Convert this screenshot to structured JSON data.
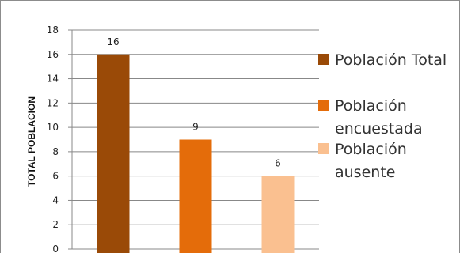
{
  "chart_data": {
    "type": "bar",
    "title": "",
    "xlabel": "",
    "ylabel": "TOTAL POBLACION",
    "ylim": [
      0,
      18
    ],
    "yticks": [
      0,
      2,
      4,
      6,
      8,
      10,
      12,
      14,
      16,
      18
    ],
    "grid": true,
    "legend_position": "right",
    "categories": [
      "Población Total",
      "Población encuestada",
      "Población ausente"
    ],
    "values": [
      16,
      9,
      6
    ],
    "colors": [
      "#9a4a07",
      "#e46c0a",
      "#fac090"
    ],
    "legend": [
      {
        "lines": [
          "Población Total"
        ],
        "color": "#9a4a07"
      },
      {
        "lines": [
          "Población",
          "encuestada"
        ],
        "color": "#e46c0a"
      },
      {
        "lines": [
          "Población",
          "ausente"
        ],
        "color": "#fac090"
      }
    ]
  }
}
